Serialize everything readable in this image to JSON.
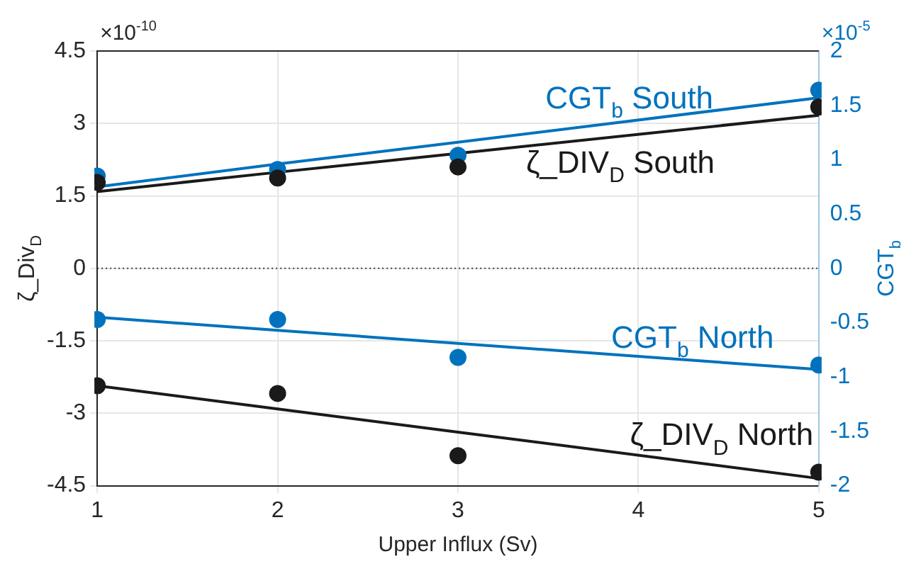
{
  "chart_data": {
    "type": "scatter",
    "xlabel": "Upper Influx (Sv)",
    "ylabel": "ζ_Div$_{D}$",
    "y2label": "CGT$_{b}$",
    "annotations": [
      "×10$^{-10}$",
      "×10$^{-5}$"
    ],
    "x": [
      1,
      2,
      3,
      5
    ],
    "xlim": [
      1,
      5
    ],
    "xticks": [
      1,
      2,
      3,
      4,
      5
    ],
    "ylim": [
      -4.5,
      4.5
    ],
    "yticks": [
      -4.5,
      -3,
      -1.5,
      0,
      1.5,
      3,
      4.5
    ],
    "y2lim": [
      -2,
      2
    ],
    "y2ticks": [
      -2,
      -1.5,
      -1,
      -0.5,
      0,
      0.5,
      1,
      1.5,
      2
    ],
    "grid": true,
    "marker": "circle",
    "line_style": "solid",
    "ref_lines": [
      {
        "axis": "y",
        "value": 0,
        "color": "#404040",
        "line_style": "dotted"
      }
    ],
    "series": [
      {
        "color": "#1a1a1a",
        "values": [
          1.78,
          1.87,
          2.1,
          3.34
        ]
      },
      {
        "color": "#0072bd",
        "axis": "y2",
        "values": [
          0.85,
          0.91,
          1.04,
          1.64
        ]
      },
      {
        "color": "#0072bd",
        "axis": "y2",
        "values": [
          -0.47,
          -0.47,
          -0.82,
          -0.89
        ]
      },
      {
        "color": "#1a1a1a",
        "values": [
          -2.43,
          -2.59,
          -3.88,
          -4.22
        ]
      },
      {
        "type": "line",
        "name": "CGT$_{b}$ South",
        "color": "#0072bd",
        "axis": "y2",
        "marker": "none",
        "values": [
          0.75,
          0.96,
          1.16,
          1.57
        ]
      },
      {
        "type": "line",
        "name": "ζ_DIV$_{D}$ South",
        "color": "#1a1a1a",
        "marker": "none",
        "values": [
          1.59,
          1.99,
          2.38,
          3.17
        ]
      },
      {
        "type": "line",
        "name": "CGT$_{b}$ North",
        "color": "#0072bd",
        "axis": "y2",
        "marker": "none",
        "values": [
          -0.45,
          -0.57,
          -0.69,
          -0.93
        ]
      },
      {
        "type": "line",
        "name": "ζ_DIV$_{D}$ North",
        "color": "#1a1a1a",
        "marker": "none",
        "values": [
          -2.43,
          -2.91,
          -3.39,
          -4.35
        ]
      }
    ]
  }
}
